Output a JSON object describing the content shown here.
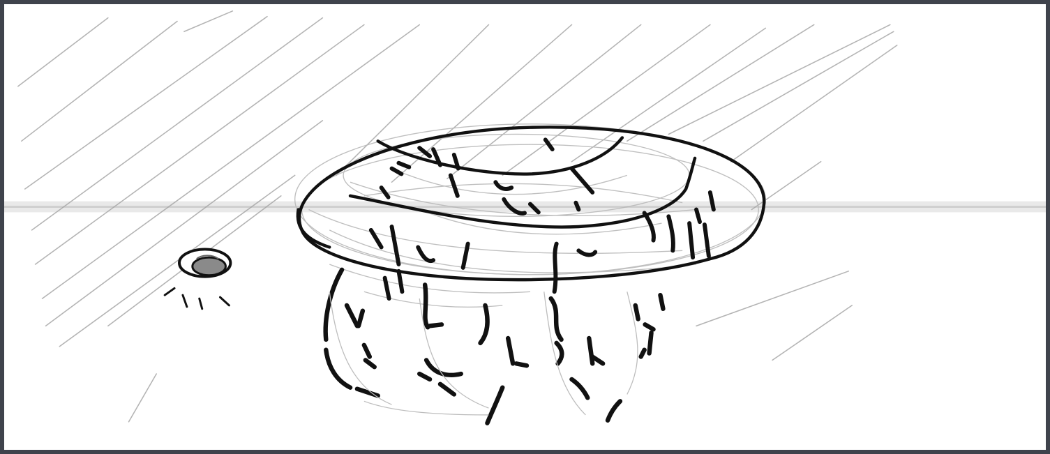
{
  "panel": {
    "subject": "",
    "colors": {
      "paper": "#ffffff",
      "ink": "#111111",
      "pencil": "#9a9a9a",
      "frame": "#3f434c"
    }
  }
}
